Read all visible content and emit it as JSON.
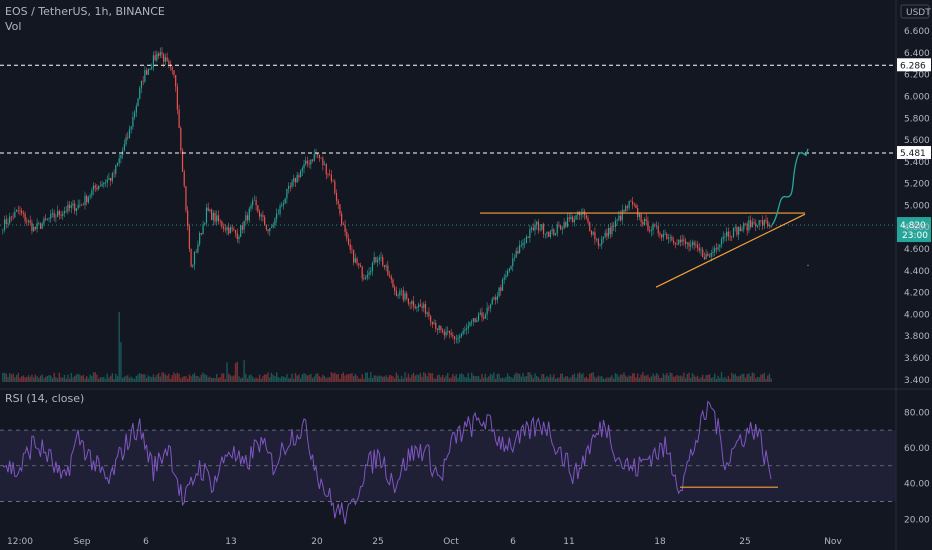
{
  "header": {
    "symbol": "EOS / TetherUS, 1h, BINANCE",
    "volume_label": "Vol",
    "currency": "USDT",
    "rsi_label": "RSI (14, close)"
  },
  "price_tags": {
    "upper_level": "6.286",
    "lower_level": "5.481",
    "last_price": "4.820",
    "countdown": "23:00"
  },
  "colors": {
    "background": "#131722",
    "up": "#26a69a",
    "down": "#ef5350",
    "trendline": "#f7a03a",
    "rsi_line": "#7e57c2",
    "dashed_level": "#ffffff",
    "projection": "#26a69a"
  },
  "chart_data": [
    {
      "type": "candlestick",
      "title": "EOS / TetherUS, 1h, BINANCE",
      "y_unit": "USDT",
      "y_ticks": [
        3.4,
        3.6,
        3.8,
        4.0,
        4.2,
        4.4,
        4.6,
        4.8,
        5.0,
        5.2,
        5.4,
        5.6,
        5.8,
        6.0,
        6.2,
        6.4,
        6.6
      ],
      "ylim": [
        3.38,
        6.72
      ],
      "x_ticks": [
        "12:00",
        "Sep",
        "6",
        "13",
        "20",
        "25",
        "Oct",
        "6",
        "11",
        "18",
        "25",
        "Nov"
      ],
      "closes": [
        4.82,
        4.95,
        4.78,
        4.88,
        4.96,
        5.01,
        5.18,
        5.26,
        5.64,
        6.2,
        6.42,
        6.15,
        4.42,
        4.95,
        4.82,
        4.73,
        5.02,
        4.75,
        5.08,
        5.32,
        5.48,
        5.24,
        4.62,
        4.35,
        4.55,
        4.22,
        4.12,
        4.04,
        3.82,
        3.78,
        3.92,
        4.04,
        4.32,
        4.63,
        4.82,
        4.74,
        4.86,
        4.92,
        4.65,
        4.82,
        5.02,
        4.82,
        4.75,
        4.68,
        4.62,
        4.52,
        4.74,
        4.78,
        4.85,
        4.82
      ],
      "volume_spikes": [
        {
          "label": "6",
          "volume": "high"
        }
      ],
      "horizontal_levels": [
        6.286,
        5.481
      ],
      "last_price": 4.82,
      "annotations": {
        "triangle_resistance": 4.93,
        "triangle_support_from": 4.25,
        "triangle_support_to": 4.92,
        "projection_target": 5.46
      }
    },
    {
      "type": "line",
      "title": "RSI (14, close)",
      "y_ticks": [
        20,
        40,
        60,
        80
      ],
      "ylim": [
        14,
        88
      ],
      "band": [
        30,
        70
      ],
      "midline": 50,
      "values": [
        52,
        46,
        63,
        56,
        40,
        66,
        52,
        40,
        60,
        73,
        48,
        62,
        28,
        50,
        40,
        60,
        48,
        64,
        50,
        66,
        72,
        44,
        26,
        22,
        48,
        56,
        40,
        56,
        60,
        42,
        66,
        72,
        76,
        64,
        62,
        70,
        74,
        58,
        44,
        62,
        74,
        52,
        48,
        56,
        60,
        38,
        64,
        86,
        52,
        66,
        72,
        44
      ],
      "support_line": 38
    }
  ]
}
